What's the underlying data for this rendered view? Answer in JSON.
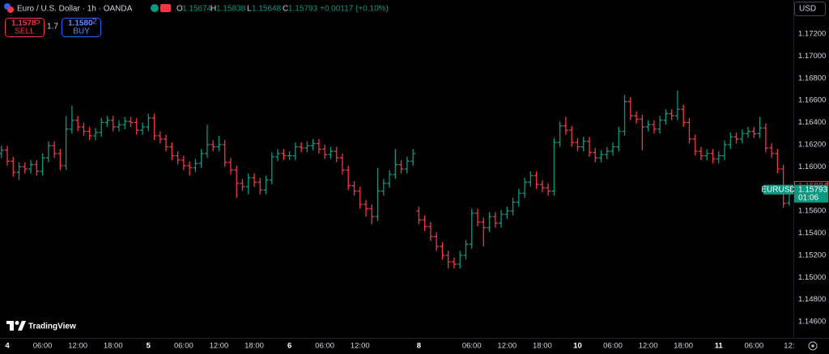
{
  "header": {
    "title": "Euro / U.S. Dollar · 1h · OANDA",
    "open_label": "O",
    "high_label": "H",
    "low_label": "L",
    "close_label": "C",
    "change": "+0.00117 (+0.10%)"
  },
  "trade": {
    "sell_price": "1.1578",
    "sell_pip": "5",
    "sell": "SELL",
    "spread": "1.7",
    "buy_price": "1.1580",
    "buy_pip": "2",
    "buy": "BUY"
  },
  "currency": "USD",
  "symbol": "EURUSD",
  "countdown": "01:06",
  "logo": "TradingView",
  "chart_data": {
    "type": "ohlc",
    "open": [
      1.1612,
      1.1615,
      1.1605,
      1.1595,
      1.16,
      1.1598,
      1.1602,
      1.1596,
      1.1608,
      1.1619,
      1.1612,
      1.1601,
      1.1634,
      1.1642,
      1.1636,
      1.1632,
      1.1628,
      1.1631,
      1.164,
      1.1642,
      1.1636,
      1.1638,
      1.1641,
      1.164,
      1.1633,
      1.1636,
      1.1644,
      1.1628,
      1.1625,
      1.1618,
      1.161,
      1.1606,
      1.1601,
      1.1599,
      1.1603,
      1.1612,
      1.162,
      1.1618,
      1.162,
      1.1604,
      1.1597,
      1.1585,
      1.1582,
      1.159,
      1.1586,
      1.1579,
      1.1588,
      1.1609,
      1.1612,
      1.161,
      1.161,
      1.1618,
      1.1617,
      1.1619,
      1.1621,
      1.1616,
      1.1611,
      1.1614,
      1.1608,
      1.1597,
      1.1583,
      1.1578,
      1.1566,
      1.1562,
      1.1555,
      1.1578,
      1.1585,
      1.1593,
      1.1602,
      1.1598,
      1.1605,
      1.156,
      1.1552,
      1.1546,
      1.1537,
      1.1528,
      1.152,
      1.1514,
      1.1512,
      1.152,
      1.153,
      1.1558,
      1.155,
      1.1545,
      1.1555,
      1.1549,
      1.1557,
      1.156,
      1.1568,
      1.1576,
      1.1586,
      1.1592,
      1.1584,
      1.1581,
      1.1578,
      1.1622,
      1.1637,
      1.1633,
      1.1622,
      1.1618,
      1.1623,
      1.1613,
      1.1608,
      1.1611,
      1.1614,
      1.1618,
      1.1632,
      1.1659,
      1.1646,
      1.1643,
      1.1636,
      1.1638,
      1.1634,
      1.1642,
      1.1648,
      1.1646,
      1.1652,
      1.164,
      1.1625,
      1.1614,
      1.161,
      1.1612,
      1.1607,
      1.161,
      1.162,
      1.1627,
      1.1625,
      1.163,
      1.1632,
      1.163,
      1.1635,
      1.1617,
      1.1612,
      1.1598,
      1.15674
    ],
    "high": [
      1.1619,
      1.1619,
      1.1609,
      1.1604,
      1.1604,
      1.1606,
      1.1606,
      1.1612,
      1.1623,
      1.1623,
      1.1616,
      1.1646,
      1.1655,
      1.1646,
      1.164,
      1.1636,
      1.1635,
      1.1644,
      1.1646,
      1.1646,
      1.1642,
      1.1645,
      1.1645,
      1.1644,
      1.164,
      1.1648,
      1.1648,
      1.1632,
      1.1629,
      1.1622,
      1.1614,
      1.161,
      1.1605,
      1.1607,
      1.1616,
      1.1638,
      1.1624,
      1.1628,
      1.1624,
      1.1608,
      1.1601,
      1.1589,
      1.1594,
      1.1594,
      1.159,
      1.1592,
      1.1613,
      1.1616,
      1.1616,
      1.1614,
      1.1622,
      1.1622,
      1.1623,
      1.1625,
      1.1625,
      1.162,
      1.1618,
      1.1618,
      1.1612,
      1.1601,
      1.1587,
      1.1582,
      1.157,
      1.1566,
      1.1599,
      1.1589,
      1.1597,
      1.1616,
      1.1606,
      1.1609,
      1.1616,
      1.1564,
      1.1556,
      1.155,
      1.1541,
      1.1532,
      1.1524,
      1.1518,
      1.1524,
      1.1534,
      1.1562,
      1.1562,
      1.1554,
      1.1559,
      1.1559,
      1.1561,
      1.1564,
      1.1572,
      1.158,
      1.159,
      1.1596,
      1.1596,
      1.1588,
      1.1585,
      1.1626,
      1.1641,
      1.1645,
      1.1637,
      1.1626,
      1.1627,
      1.1627,
      1.1617,
      1.1615,
      1.1618,
      1.1622,
      1.1636,
      1.1665,
      1.1663,
      1.165,
      1.1647,
      1.1642,
      1.1642,
      1.1646,
      1.1652,
      1.1652,
      1.1669,
      1.1656,
      1.1644,
      1.1629,
      1.1618,
      1.1616,
      1.1616,
      1.1614,
      1.1624,
      1.1631,
      1.1631,
      1.1634,
      1.1636,
      1.1636,
      1.1645,
      1.1639,
      1.1621,
      1.1616,
      1.1602,
      1.15838
    ],
    "low": [
      1.1608,
      1.1601,
      1.1591,
      1.1588,
      1.1594,
      1.1594,
      1.1592,
      1.1592,
      1.1604,
      1.1608,
      1.1597,
      1.1597,
      1.163,
      1.1632,
      1.1628,
      1.1624,
      1.1624,
      1.1627,
      1.1636,
      1.1632,
      1.1632,
      1.1634,
      1.1636,
      1.1629,
      1.1629,
      1.1632,
      1.1624,
      1.1621,
      1.1614,
      1.1606,
      1.1602,
      1.1597,
      1.1592,
      1.1595,
      1.1599,
      1.1608,
      1.1614,
      1.1614,
      1.16,
      1.1593,
      1.1572,
      1.1578,
      1.1575,
      1.1582,
      1.1575,
      1.1575,
      1.1584,
      1.1605,
      1.1606,
      1.1606,
      1.1606,
      1.1613,
      1.1613,
      1.1615,
      1.1612,
      1.1607,
      1.1607,
      1.1604,
      1.1593,
      1.1579,
      1.1574,
      1.1562,
      1.1555,
      1.1548,
      1.1551,
      1.1574,
      1.1581,
      1.1589,
      1.1594,
      1.1594,
      1.1601,
      1.1548,
      1.1542,
      1.1533,
      1.1524,
      1.1516,
      1.1508,
      1.1508,
      1.1508,
      1.1516,
      1.1526,
      1.1546,
      1.1528,
      1.1541,
      1.1545,
      1.1545,
      1.1553,
      1.1556,
      1.1564,
      1.1572,
      1.1582,
      1.158,
      1.1577,
      1.1574,
      1.1574,
      1.1618,
      1.1629,
      1.1618,
      1.1614,
      1.1614,
      1.1609,
      1.1604,
      1.1604,
      1.1607,
      1.161,
      1.1614,
      1.1628,
      1.1642,
      1.1639,
      1.1615,
      1.1632,
      1.163,
      1.163,
      1.1638,
      1.1642,
      1.1642,
      1.1636,
      1.1621,
      1.161,
      1.1606,
      1.1606,
      1.1603,
      1.1603,
      1.1606,
      1.1616,
      1.1621,
      1.1621,
      1.1626,
      1.1626,
      1.1626,
      1.1613,
      1.1608,
      1.1594,
      1.1563,
      1.15648
    ],
    "close": [
      1.1615,
      1.1605,
      1.1595,
      1.16,
      1.1598,
      1.1602,
      1.1596,
      1.1608,
      1.1619,
      1.1612,
      1.1601,
      1.1634,
      1.1642,
      1.1636,
      1.1632,
      1.1628,
      1.1631,
      1.164,
      1.1642,
      1.1636,
      1.1638,
      1.1641,
      1.164,
      1.1633,
      1.1636,
      1.1644,
      1.1628,
      1.1625,
      1.1618,
      1.161,
      1.1606,
      1.1601,
      1.1599,
      1.1603,
      1.1612,
      1.162,
      1.1618,
      1.162,
      1.1604,
      1.1597,
      1.1585,
      1.1582,
      1.159,
      1.1586,
      1.1579,
      1.1588,
      1.1609,
      1.1612,
      1.161,
      1.161,
      1.1618,
      1.1617,
      1.1619,
      1.1621,
      1.1616,
      1.1611,
      1.1614,
      1.1608,
      1.1597,
      1.1583,
      1.1578,
      1.1566,
      1.1562,
      1.1555,
      1.1578,
      1.1585,
      1.1593,
      1.1602,
      1.1598,
      1.1605,
      1.1612,
      1.1552,
      1.1546,
      1.1537,
      1.1528,
      1.152,
      1.1514,
      1.1512,
      1.152,
      1.153,
      1.1558,
      1.155,
      1.1545,
      1.1555,
      1.1549,
      1.1557,
      1.156,
      1.1568,
      1.1576,
      1.1586,
      1.1592,
      1.1584,
      1.1581,
      1.1578,
      1.1622,
      1.1637,
      1.1633,
      1.1622,
      1.1618,
      1.1623,
      1.1613,
      1.1608,
      1.1611,
      1.1614,
      1.1618,
      1.1632,
      1.1659,
      1.1646,
      1.1643,
      1.1636,
      1.1638,
      1.1634,
      1.1642,
      1.1648,
      1.1646,
      1.1652,
      1.164,
      1.1625,
      1.1614,
      1.161,
      1.1612,
      1.1607,
      1.161,
      1.162,
      1.1627,
      1.1625,
      1.163,
      1.1632,
      1.163,
      1.1635,
      1.1617,
      1.1612,
      1.1598,
      1.1567,
      1.15793
    ],
    "up_color": "#089981",
    "down_color": "#f23645",
    "bid": 1.15824,
    "ylim": [
      1.14454,
      1.17507
    ],
    "yticks": [
      {
        "value": 1.146,
        "label": "1.14600"
      },
      {
        "value": 1.148,
        "label": "1.14800"
      },
      {
        "value": 1.15,
        "label": "1.15000"
      },
      {
        "value": 1.152,
        "label": "1.15200"
      },
      {
        "value": 1.154,
        "label": "1.15400"
      },
      {
        "value": 1.156,
        "label": "1.15600"
      },
      {
        "value": 1.158,
        "label": "1.15800"
      },
      {
        "value": 1.16,
        "label": "1.16000"
      },
      {
        "value": 1.162,
        "label": "1.16200"
      },
      {
        "value": 1.164,
        "label": "1.16400"
      },
      {
        "value": 1.166,
        "label": "1.16600"
      },
      {
        "value": 1.168,
        "label": "1.16800"
      },
      {
        "value": 1.17,
        "label": "1.17000"
      },
      {
        "value": 1.172,
        "label": "1.17200"
      }
    ],
    "xlim": [
      -0.24,
      134.7
    ],
    "xticks": [
      {
        "value": 1,
        "label": "4"
      },
      {
        "value": 7,
        "label": "06:00"
      },
      {
        "value": 13,
        "label": "12:00"
      },
      {
        "value": 19,
        "label": "18:00"
      },
      {
        "value": 25,
        "label": "5"
      },
      {
        "value": 31,
        "label": "06:00"
      },
      {
        "value": 37,
        "label": "12:00"
      },
      {
        "value": 43,
        "label": "18:00"
      },
      {
        "value": 49,
        "label": "6"
      },
      {
        "value": 55,
        "label": "06:00"
      },
      {
        "value": 61,
        "label": "12:00"
      },
      {
        "value": 71,
        "label": "8"
      },
      {
        "value": 80,
        "label": "06:00"
      },
      {
        "value": 86,
        "label": "12:00"
      },
      {
        "value": 92,
        "label": "18:00"
      },
      {
        "value": 98,
        "label": "10"
      },
      {
        "value": 104,
        "label": "06:00"
      },
      {
        "value": 110,
        "label": "12:00"
      },
      {
        "value": 116,
        "label": "18:00"
      },
      {
        "value": 122,
        "label": "11"
      },
      {
        "value": 128,
        "label": "06:00"
      },
      {
        "value": 134,
        "label": "12:"
      }
    ],
    "grid": false
  }
}
